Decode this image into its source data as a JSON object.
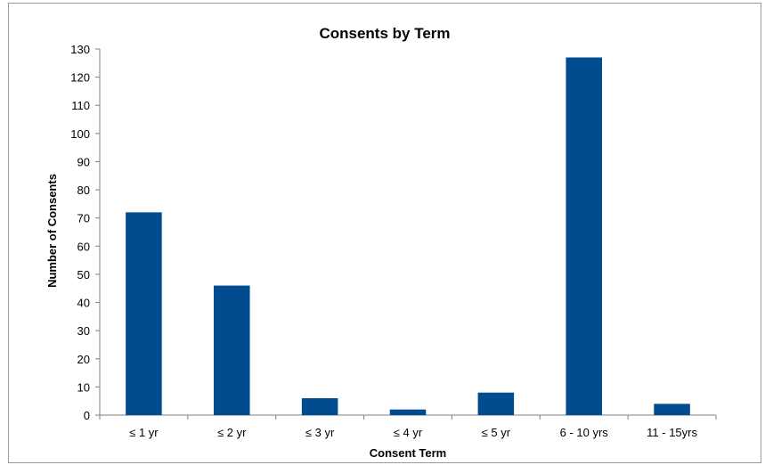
{
  "chart_data": {
    "type": "bar",
    "title": "Consents by Term",
    "xlabel": "Consent Term",
    "ylabel": "Number of Consents",
    "categories": [
      "≤ 1 yr",
      "≤ 2 yr",
      "≤ 3 yr",
      "≤ 4 yr",
      "≤ 5 yr",
      "6 - 10 yrs",
      "11 - 15yrs"
    ],
    "values": [
      72,
      46,
      6,
      2,
      8,
      127,
      4
    ],
    "ylim": [
      0,
      130
    ],
    "yticks": [
      "0",
      "10",
      "20",
      "30",
      "40",
      "50",
      "60",
      "70",
      "80",
      "90",
      "100",
      "110",
      "120",
      "130"
    ],
    "grid": false,
    "legend": "none",
    "bar_color": "#004c8f",
    "axis_color": "#7f7f7f"
  }
}
